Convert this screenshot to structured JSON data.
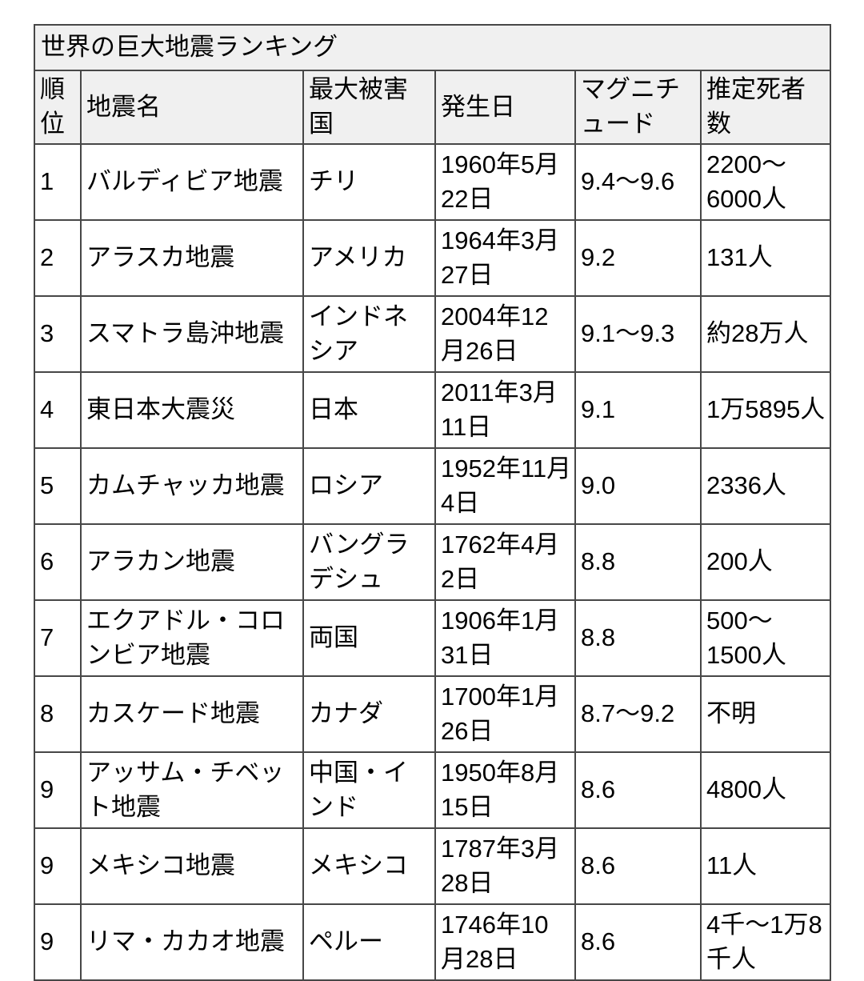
{
  "table": {
    "title": "世界の巨大地震ランキング",
    "columns": {
      "rank": "順位",
      "name": "地震名",
      "country": "最大被害国",
      "date": "発生日",
      "magnitude": "マグニチュード",
      "deaths": "推定死者数"
    },
    "rows": [
      {
        "rank": "1",
        "name": "バルディビア地震",
        "country": "チリ",
        "date": "1960年5月22日",
        "magnitude": "9.4〜9.6",
        "deaths": "2200〜6000人"
      },
      {
        "rank": "2",
        "name": "アラスカ地震",
        "country": "アメリカ",
        "date": "1964年3月27日",
        "magnitude": "9.2",
        "deaths": "131人"
      },
      {
        "rank": "3",
        "name": "スマトラ島沖地震",
        "country": "インドネシア",
        "date": "2004年12月26日",
        "magnitude": "9.1〜9.3",
        "deaths": "約28万人"
      },
      {
        "rank": "4",
        "name": "東日本大震災",
        "country": "日本",
        "date": "2011年3月11日",
        "magnitude": "9.1",
        "deaths": "1万5895人"
      },
      {
        "rank": "5",
        "name": "カムチャッカ地震",
        "country": "ロシア",
        "date": "1952年11月4日",
        "magnitude": "9.0",
        "deaths": "2336人"
      },
      {
        "rank": "6",
        "name": "アラカン地震",
        "country": "バングラデシュ",
        "date": "1762年4月2日",
        "magnitude": "8.8",
        "deaths": "200人"
      },
      {
        "rank": "7",
        "name": "エクアドル・コロンビア地震",
        "country": "両国",
        "date": "1906年1月31日",
        "magnitude": "8.8",
        "deaths": "500〜1500人"
      },
      {
        "rank": "8",
        "name": "カスケード地震",
        "country": "カナダ",
        "date": "1700年1月26日",
        "magnitude": "8.7〜9.2",
        "deaths": "不明"
      },
      {
        "rank": "9",
        "name": "アッサム・チベット地震",
        "country": "中国・インド",
        "date": "1950年8月15日",
        "magnitude": "8.6",
        "deaths": "4800人"
      },
      {
        "rank": "9",
        "name": "メキシコ地震",
        "country": "メキシコ",
        "date": "1787年3月28日",
        "magnitude": "8.6",
        "deaths": "11人"
      },
      {
        "rank": "9",
        "name": "リマ・カカオ地震",
        "country": "ペルー",
        "date": "1746年10月28日",
        "magnitude": "8.6",
        "deaths": "4千〜1万8千人"
      }
    ],
    "colors": {
      "header_bg": "#f0f0f0",
      "body_bg": "#ffffff",
      "border": "#474747",
      "text": "#000000"
    }
  }
}
